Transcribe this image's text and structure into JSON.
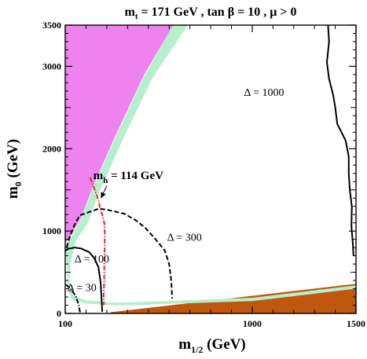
{
  "chart_data": {
    "type": "contour",
    "title": "m_t = 171 GeV , tan β = 10 , μ > 0",
    "title_parts": {
      "mt_label": "m",
      "mt_sub": "t",
      "mt_value": " = 171 GeV , tan ",
      "beta": "β",
      "tanb_value": " = 10 ,  ",
      "mu": "μ",
      "mu_value": " > 0"
    },
    "xlabel": {
      "main": "m",
      "sub": "1/2",
      "unit": " (GeV)"
    },
    "ylabel": {
      "main": "m",
      "sub": "0",
      "unit": " (GeV)"
    },
    "xlim": [
      100,
      1500
    ],
    "ylim": [
      0,
      3500
    ],
    "x_scale_breaks": [
      100,
      1000,
      1500
    ],
    "x_ticks": [
      100,
      1000,
      1500
    ],
    "x_tick_labels": [
      "100",
      "1000",
      "1500"
    ],
    "y_ticks": [
      0,
      1000,
      2000,
      3000,
      3500
    ],
    "y_tick_labels": [
      "0",
      "1000",
      "2000",
      "3000",
      "3500"
    ],
    "colors": {
      "excluded_upper": "#ee82ee",
      "excluded_lower": "#c0570f",
      "dark_matter_band": "#b4f0cc",
      "contour": "#000000",
      "higgs_bound": "#e8252a"
    },
    "regions": [
      {
        "id": "magenta-region",
        "color": "#ee82ee",
        "points": [
          [
            100,
            850
          ],
          [
            100,
            3500
          ],
          [
            620,
            3500
          ],
          [
            480,
            2900
          ],
          [
            340,
            2150
          ],
          [
            235,
            1550
          ],
          [
            175,
            1150
          ],
          [
            130,
            950
          ]
        ]
      },
      {
        "id": "orange-region",
        "color": "#c0570f",
        "points": [
          [
            320,
            0
          ],
          [
            1500,
            0
          ],
          [
            1500,
            360
          ],
          [
            320,
            15
          ]
        ]
      },
      {
        "id": "green-band",
        "color": "#b4f0cc",
        "points": [
          [
            100,
            820
          ],
          [
            130,
            930
          ],
          [
            175,
            1130
          ],
          [
            235,
            1530
          ],
          [
            340,
            2130
          ],
          [
            480,
            2880
          ],
          [
            620,
            3500
          ],
          [
            690,
            3500
          ],
          [
            520,
            2860
          ],
          [
            375,
            2100
          ],
          [
            265,
            1480
          ],
          [
            205,
            1080
          ],
          [
            150,
            880
          ],
          [
            125,
            600
          ],
          [
            120,
            380
          ],
          [
            135,
            220
          ],
          [
            200,
            160
          ],
          [
            350,
            130
          ],
          [
            1000,
            190
          ],
          [
            1500,
            340
          ],
          [
            1500,
            300
          ],
          [
            1000,
            150
          ],
          [
            350,
            95
          ],
          [
            200,
            120
          ],
          [
            130,
            165
          ],
          [
            112,
            310
          ],
          [
            108,
            600
          ]
        ]
      }
    ],
    "series": [
      {
        "name": "Δ = 1000",
        "label_prefix": "Δ",
        "label_value": " = 1000",
        "label_at": [
          960,
          2640
        ],
        "style": "solid",
        "color": "#000000",
        "points": [
          [
            1365,
            3500
          ],
          [
            1370,
            3300
          ],
          [
            1360,
            3050
          ],
          [
            1370,
            2850
          ],
          [
            1390,
            2650
          ],
          [
            1400,
            2500
          ],
          [
            1410,
            2300
          ],
          [
            1450,
            2100
          ],
          [
            1465,
            1900
          ],
          [
            1465,
            1700
          ],
          [
            1470,
            1500
          ],
          [
            1480,
            1300
          ],
          [
            1478,
            1050
          ],
          [
            1485,
            850
          ],
          [
            1488,
            700
          ]
        ]
      },
      {
        "name": "Δ = 300",
        "label_prefix": "Δ",
        "label_value": " = 300",
        "label_at": [
          590,
          880
        ],
        "style": "dashed",
        "color": "#000000",
        "points": [
          [
            107,
            800
          ],
          [
            120,
            920
          ],
          [
            145,
            1080
          ],
          [
            170,
            1190
          ],
          [
            215,
            1230
          ],
          [
            260,
            1270
          ],
          [
            300,
            1260
          ],
          [
            385,
            1210
          ],
          [
            440,
            1130
          ],
          [
            485,
            1040
          ],
          [
            535,
            900
          ],
          [
            580,
            760
          ],
          [
            600,
            600
          ],
          [
            610,
            400
          ],
          [
            615,
            180
          ]
        ]
      },
      {
        "name": "Δ = 100",
        "label_prefix": "Δ",
        "label_value": " = 100",
        "label_at": [
          145,
          620
        ],
        "style": "solid",
        "color": "#000000",
        "points": [
          [
            100,
            760
          ],
          [
            115,
            785
          ],
          [
            145,
            800
          ],
          [
            175,
            790
          ],
          [
            215,
            745
          ],
          [
            240,
            670
          ],
          [
            260,
            560
          ],
          [
            270,
            380
          ],
          [
            275,
            170
          ],
          [
            278,
            20
          ]
        ]
      },
      {
        "name": "Δ = 30",
        "label_prefix": "Δ",
        "label_value": " = 30",
        "label_at": [
          110,
          270
        ],
        "style": "dashdot",
        "color": "#000000",
        "points": [
          [
            104,
            350
          ],
          [
            125,
            300
          ],
          [
            150,
            215
          ],
          [
            165,
            100
          ],
          [
            172,
            5
          ]
        ]
      },
      {
        "name": "m_h = 114 GeV",
        "label_main": "m",
        "label_sub": "h",
        "label_value": " = 114 GeV",
        "label_at": [
          235,
          1630
        ],
        "style": "dashdot",
        "color": "#e8252a",
        "points": [
          [
            220,
            1650
          ],
          [
            235,
            1550
          ],
          [
            250,
            1450
          ],
          [
            262,
            1360
          ],
          [
            268,
            1270
          ],
          [
            278,
            1200
          ],
          [
            288,
            1100
          ],
          [
            290,
            1000
          ],
          [
            290,
            800
          ],
          [
            288,
            600
          ],
          [
            287,
            400
          ],
          [
            285,
            200
          ],
          [
            286,
            100
          ]
        ]
      }
    ]
  }
}
